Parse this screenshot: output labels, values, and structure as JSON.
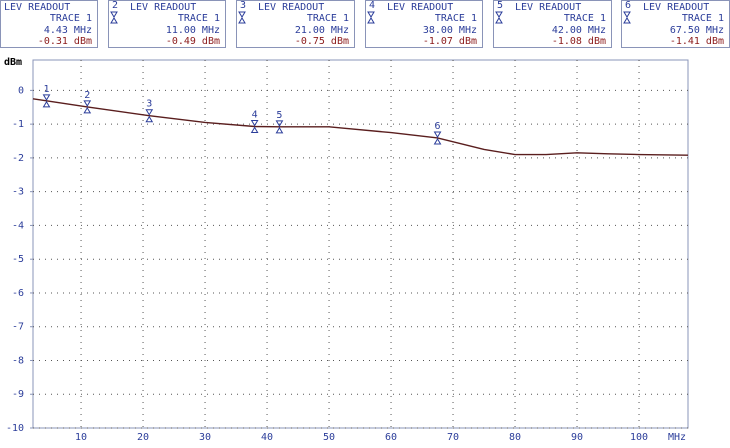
{
  "readouts": [
    {
      "id": "1",
      "title": "LEV READOUT",
      "trace": "TRACE 1",
      "freq": "4.43 MHz",
      "level": "-0.31 dBm"
    },
    {
      "id": "2",
      "title": "LEV READOUT",
      "trace": "TRACE 1",
      "freq": "11.00 MHz",
      "level": "-0.49 dBm"
    },
    {
      "id": "3",
      "title": "LEV READOUT",
      "trace": "TRACE 1",
      "freq": "21.00 MHz",
      "level": "-0.75 dBm"
    },
    {
      "id": "4",
      "title": "LEV READOUT",
      "trace": "TRACE 1",
      "freq": "38.00 MHz",
      "level": "-1.07 dBm"
    },
    {
      "id": "5",
      "title": "LEV READOUT",
      "trace": "TRACE 1",
      "freq": "42.00 MHz",
      "level": "-1.08 dBm"
    },
    {
      "id": "6",
      "title": "LEV READOUT",
      "trace": "TRACE 1",
      "freq": "67.50 MHz",
      "level": "-1.41 dBm"
    }
  ],
  "chart_data": {
    "type": "line",
    "y_label": "dBm",
    "x_label": "MHz",
    "xlim": [
      2.25,
      107.9
    ],
    "xticks": [
      10,
      20,
      30,
      40,
      50,
      60,
      70,
      80,
      90,
      100
    ],
    "ylim": [
      -10,
      0.9
    ],
    "yticks": [
      0,
      -1,
      -2,
      -3,
      -4,
      -5,
      -6,
      -7,
      -8,
      -9,
      -10
    ],
    "grid": true,
    "series": [
      {
        "name": "TRACE 1",
        "color": "#5a1e1e",
        "x": [
          2.25,
          4.43,
          11,
          21,
          30,
          38,
          42,
          50,
          60,
          67.5,
          75,
          80,
          85,
          90,
          95,
          100,
          107.9
        ],
        "values": [
          -0.25,
          -0.31,
          -0.49,
          -0.75,
          -0.95,
          -1.07,
          -1.08,
          -1.08,
          -1.25,
          -1.41,
          -1.75,
          -1.9,
          -1.9,
          -1.85,
          -1.88,
          -1.9,
          -1.92
        ]
      }
    ],
    "markers": {
      "color": "#2b3d9a",
      "labels": [
        "1",
        "2",
        "3",
        "4",
        "5",
        "6"
      ],
      "x": [
        4.43,
        11,
        21,
        38,
        42,
        67.5
      ],
      "values": [
        -0.31,
        -0.49,
        -0.75,
        -1.07,
        -1.08,
        -1.41
      ]
    }
  }
}
